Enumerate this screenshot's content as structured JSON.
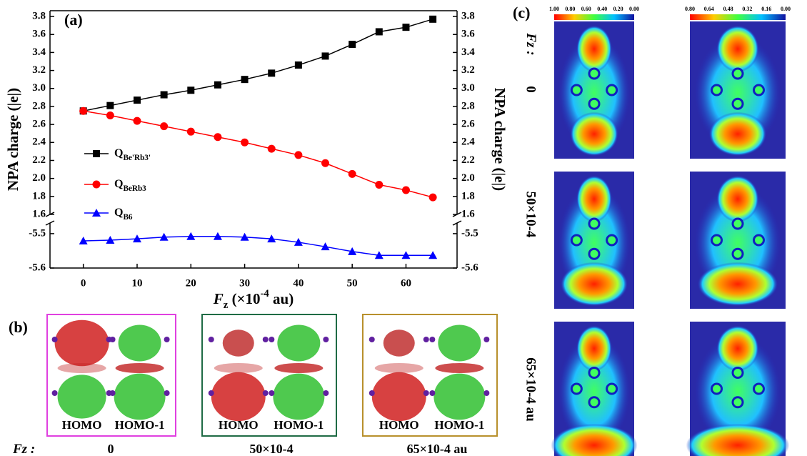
{
  "chart_data": {
    "type": "line",
    "panel_label": "(a)",
    "y_label": "NPA charge (|e|)",
    "x_label": [
      "F",
      "z",
      " (×10",
      "-4",
      " au)"
    ],
    "x": [
      0,
      5,
      10,
      15,
      20,
      25,
      30,
      35,
      40,
      45,
      50,
      55,
      60,
      65
    ],
    "xlim": [
      -6.2,
      69.5
    ],
    "xticks": [
      0,
      10,
      20,
      30,
      40,
      50,
      60
    ],
    "panels": [
      {
        "ylim": [
          1.6,
          3.864
        ],
        "yticks": [
          1.6,
          1.8,
          {
            "value": 2.0,
            "label": "2.0"
          },
          2.2,
          2.4,
          2.6,
          2.8,
          {
            "value": 3.0,
            "label": "3.0"
          },
          3.2,
          3.4,
          3.6,
          3.8
        ]
      },
      {
        "ylim": [
          -5.6,
          -5.469
        ],
        "yticks": [
          -5.6,
          -5.5
        ]
      }
    ],
    "series": [
      {
        "name": "QBe'Rb3'",
        "color": "#000000",
        "marker": "square",
        "panel": 0,
        "values": [
          2.75,
          2.81,
          2.87,
          2.93,
          2.98,
          3.04,
          3.1,
          3.17,
          3.26,
          3.36,
          3.49,
          3.63,
          3.68,
          3.77
        ]
      },
      {
        "name": "QBeRb3",
        "color": "#ff0000",
        "marker": "circle",
        "panel": 0,
        "values": [
          2.75,
          2.7,
          2.64,
          2.58,
          2.52,
          2.46,
          2.4,
          2.33,
          2.26,
          2.17,
          2.05,
          1.93,
          1.87,
          1.79
        ]
      },
      {
        "name": "QB6",
        "color": "#0000ff",
        "marker": "triangle",
        "panel": 1,
        "values": [
          -5.521,
          -5.519,
          -5.515,
          -5.51,
          -5.508,
          -5.508,
          -5.51,
          -5.515,
          -5.525,
          -5.538,
          -5.552,
          -5.563,
          -5.563,
          -5.563
        ]
      }
    ]
  },
  "panel_b": {
    "label": "(b)",
    "boxes": [
      [
        "HOMO",
        "HOMO-1"
      ],
      [
        "HOMO",
        "HOMO-1"
      ],
      [
        "HOMO",
        "HOMO-1"
      ]
    ],
    "field_title": "Fz :",
    "fields": [
      "0",
      "50×10-4",
      "65×10-4 au"
    ]
  },
  "panel_c": {
    "label": "(c)",
    "colorbars": [
      [
        "1.00",
        "0.80",
        "0.60",
        "0.40",
        "0.20",
        "0.00"
      ],
      [
        "0.80",
        "0.64",
        "0.48",
        "0.32",
        "0.16",
        "0.00"
      ]
    ],
    "field_title": "Fz :",
    "fields": [
      "0",
      "50×10-4",
      "65×10-4 au"
    ]
  }
}
